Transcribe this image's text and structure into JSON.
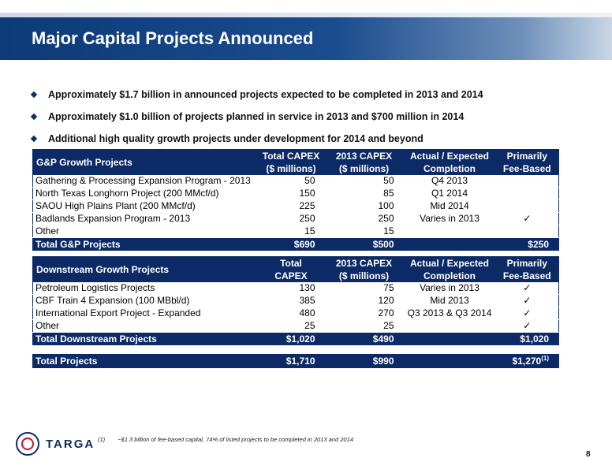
{
  "title": "Major Capital Projects Announced",
  "bullets": [
    "Approximately $1.7 billion in announced projects expected to be completed in 2013 and 2014",
    "Approximately $1.0 billion of projects planned in service in 2013 and $700 million in 2014",
    "Additional high quality growth projects under development for 2014 and beyond"
  ],
  "gp_table": {
    "section": "G&P Growth Projects",
    "h_total_1": "Total CAPEX",
    "h_total_2": "($ millions)",
    "h_2013_1": "2013 CAPEX",
    "h_2013_2": "($ millions)",
    "h_comp_1": "Actual / Expected",
    "h_comp_2": "Completion",
    "h_fee_1": "Primarily",
    "h_fee_2": "Fee-Based",
    "rows": [
      {
        "name": "Gathering & Processing Expansion Program - 2013",
        "total": "50",
        "capex2013": "50",
        "completion": "Q4 2013",
        "fee": ""
      },
      {
        "name": "North Texas Longhorn Project (200 MMcf/d)",
        "total": "150",
        "capex2013": "85",
        "completion": "Q1 2014",
        "fee": ""
      },
      {
        "name": "SAOU High Plains Plant (200 MMcf/d)",
        "total": "225",
        "capex2013": "100",
        "completion": "Mid 2014",
        "fee": ""
      },
      {
        "name": "Badlands Expansion Program - 2013",
        "total": "250",
        "capex2013": "250",
        "completion": "Varies in 2013",
        "fee": "✓"
      },
      {
        "name": "Other",
        "total": "15",
        "capex2013": "15",
        "completion": "",
        "fee": ""
      }
    ],
    "total": {
      "name": "Total G&P Projects",
      "total": "$690",
      "capex2013": "$500",
      "fee": "$250"
    }
  },
  "ds_table": {
    "section": "Downstream Growth Projects",
    "h_total_1": "Total",
    "h_total_2": "CAPEX",
    "h_2013_1": "2013 CAPEX",
    "h_2013_2": "($ millions)",
    "h_comp_1": "Actual / Expected",
    "h_comp_2": "Completion",
    "h_fee_1": "Primarily",
    "h_fee_2": "Fee-Based",
    "rows": [
      {
        "name": "Petroleum Logistics Projects",
        "total": "130",
        "capex2013": "75",
        "completion": "Varies in 2013",
        "fee": "✓"
      },
      {
        "name": "CBF Train 4 Expansion (100 MBbl/d)",
        "total": "385",
        "capex2013": "120",
        "completion": "Mid 2013",
        "fee": "✓"
      },
      {
        "name": "International Export Project - Expanded",
        "total": "480",
        "capex2013": "270",
        "completion": "Q3 2013 & Q3 2014",
        "fee": "✓"
      },
      {
        "name": "Other",
        "total": "25",
        "capex2013": "25",
        "completion": "",
        "fee": "✓"
      }
    ],
    "total": {
      "name": "Total Downstream Projects",
      "total": "$1,020",
      "capex2013": "$490",
      "fee": "$1,020"
    }
  },
  "total_projects": {
    "name": "Total Projects",
    "total": "$1,710",
    "capex2013": "$990",
    "fee": "$1,270",
    "fee_note": "(1)"
  },
  "footer": {
    "logo_text": "TARGA",
    "footnote_mark": "(1)",
    "footnote": "~$1.3 billion of fee-based capital, 74% of listed projects to be completed in 2013 and 2014",
    "page_number": "8"
  }
}
